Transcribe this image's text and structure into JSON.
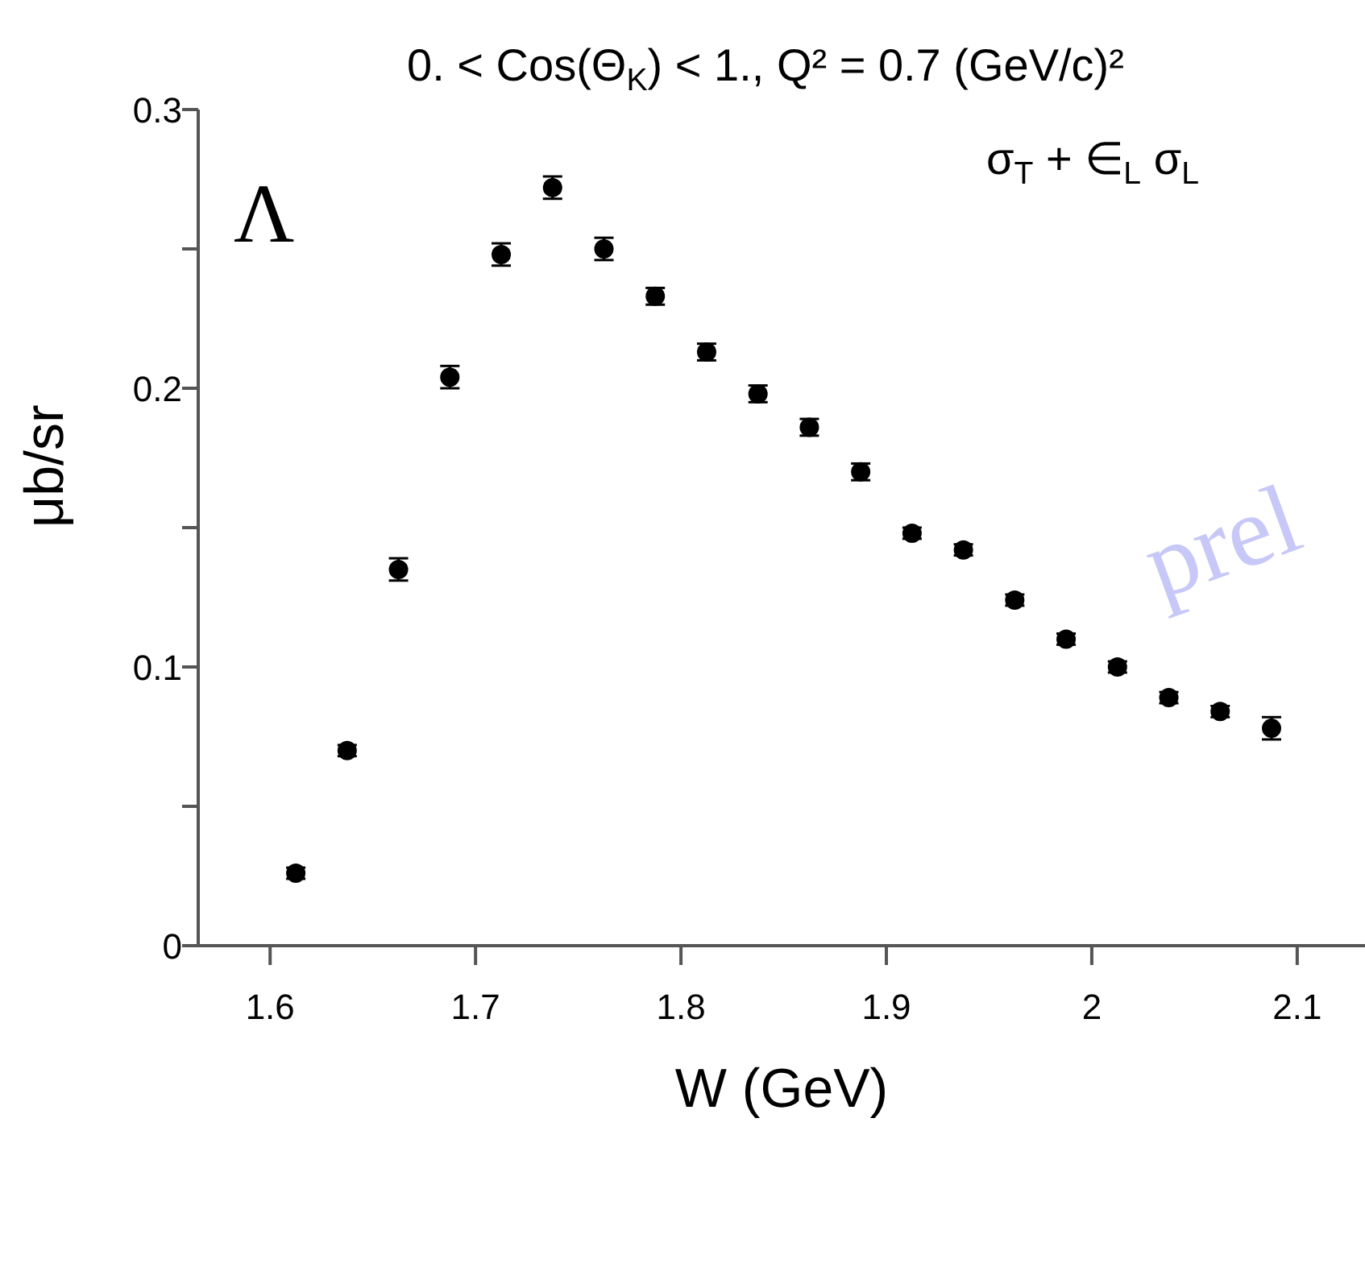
{
  "chart_data": {
    "type": "scatter",
    "title": "0. < Cos(Θ$_{K}$) < 1.,  Q² = 0.7 (GeV/c)²",
    "xlabel": "W (GeV)",
    "ylabel": "μb/sr",
    "annotations": [
      "Λ",
      "σ$_{T}$ + ∈$_{L}$ σ$_{L}$",
      "prel"
    ],
    "x": [
      1.6125,
      1.6375,
      1.6625,
      1.6875,
      1.7125,
      1.7375,
      1.7625,
      1.7875,
      1.8125,
      1.8375,
      1.8625,
      1.8875,
      1.9125,
      1.9375,
      1.9625,
      1.9875,
      2.0125,
      2.0375,
      2.0625,
      2.0875
    ],
    "values": [
      0.026,
      0.07,
      0.135,
      0.204,
      0.248,
      0.272,
      0.25,
      0.233,
      0.213,
      0.198,
      0.186,
      0.17,
      0.148,
      0.142,
      0.124,
      0.11,
      0.1,
      0.089,
      0.084,
      0.078
    ],
    "errors": [
      0.002,
      0.002,
      0.004,
      0.004,
      0.004,
      0.004,
      0.004,
      0.003,
      0.003,
      0.003,
      0.003,
      0.003,
      0.002,
      0.002,
      0.002,
      0.002,
      0.002,
      0.002,
      0.002,
      0.004
    ],
    "color": "#000000",
    "marker": "circle",
    "xlim": [
      1.565,
      2.133
    ],
    "xticks": [
      1.6,
      1.7,
      1.8,
      1.9,
      2,
      2.1
    ],
    "ylim": [
      0,
      0.3
    ],
    "yticks": [
      0,
      {
        "value": 0.05,
        "label": null
      },
      0.1,
      {
        "value": 0.15,
        "label": null
      },
      0.2,
      {
        "value": 0.25,
        "label": null
      },
      0.3
    ],
    "grid": false,
    "legend": false
  }
}
